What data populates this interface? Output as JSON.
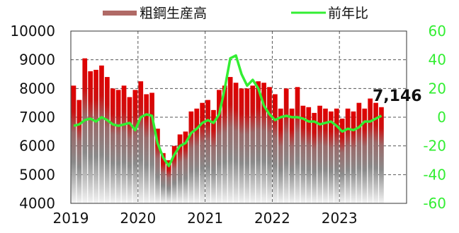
{
  "chart_data": {
    "type": "bar+line",
    "legend": {
      "items": [
        {
          "label": "粗鋼生産高",
          "kind": "bar",
          "color": "#b06a66"
        },
        {
          "label": "前年比",
          "kind": "line",
          "color": "#33ee33"
        }
      ],
      "placement": "top"
    },
    "x_ticks": [
      "2019",
      "2020",
      "2021",
      "2022",
      "2023"
    ],
    "left_axis": {
      "ticks": [
        "10000",
        "9000",
        "8000",
        "7000",
        "6000",
        "5000",
        "4000"
      ],
      "min": 4000,
      "max": 10000
    },
    "right_axis": {
      "ticks": [
        "60",
        "40",
        "20",
        "0",
        "-20",
        "-40",
        "-60"
      ],
      "min": -60,
      "max": 60,
      "color": "#33ee33"
    },
    "grid": "dashed",
    "annotation": "7,146",
    "months": [
      "2019-01",
      "2019-02",
      "2019-03",
      "2019-04",
      "2019-05",
      "2019-06",
      "2019-07",
      "2019-08",
      "2019-09",
      "2019-10",
      "2019-11",
      "2019-12",
      "2020-01",
      "2020-02",
      "2020-03",
      "2020-04",
      "2020-05",
      "2020-06",
      "2020-07",
      "2020-08",
      "2020-09",
      "2020-10",
      "2020-11",
      "2020-12",
      "2021-01",
      "2021-02",
      "2021-03",
      "2021-04",
      "2021-05",
      "2021-06",
      "2021-07",
      "2021-08",
      "2021-09",
      "2021-10",
      "2021-11",
      "2021-12",
      "2022-01",
      "2022-02",
      "2022-03",
      "2022-04",
      "2022-05",
      "2022-06",
      "2022-07",
      "2022-08",
      "2022-09",
      "2022-10",
      "2022-11",
      "2022-12",
      "2023-01",
      "2023-02",
      "2023-03",
      "2023-04",
      "2023-05",
      "2023-06",
      "2023-07",
      "2023-08"
    ],
    "series": [
      {
        "name": "粗鋼生産高",
        "type": "bar",
        "axis": "left",
        "values": [
          8100,
          7600,
          9050,
          8600,
          8650,
          8800,
          8400,
          8000,
          7950,
          8100,
          7700,
          7950,
          8250,
          7800,
          7850,
          6600,
          5750,
          5500,
          6000,
          6400,
          6500,
          7200,
          7300,
          7500,
          7600,
          7250,
          7950,
          8100,
          8400,
          8200,
          8000,
          8000,
          8100,
          8250,
          8200,
          8050,
          7800,
          7300,
          8000,
          7300,
          8050,
          7400,
          7350,
          7150,
          7400,
          7300,
          7200,
          7300,
          6950,
          7300,
          7200,
          7500,
          7300,
          7650,
          7500,
          7350
        ]
      },
      {
        "name": "前年比",
        "type": "line",
        "axis": "right",
        "values": [
          -6,
          -5,
          -2,
          -1,
          -3,
          0,
          -2,
          -5,
          -6,
          -5,
          -4,
          -9,
          0,
          2,
          1,
          -18,
          -28,
          -34,
          -26,
          -20,
          -18,
          -11,
          -8,
          -4,
          -2,
          -4,
          2,
          20,
          41,
          43,
          30,
          22,
          26,
          20,
          8,
          2,
          -2,
          0,
          1,
          0,
          0,
          -1,
          -3,
          -3,
          -5,
          -4,
          -3,
          -6,
          -10,
          -8,
          -9,
          -7,
          -3,
          -3,
          -1,
          1
        ]
      }
    ]
  }
}
